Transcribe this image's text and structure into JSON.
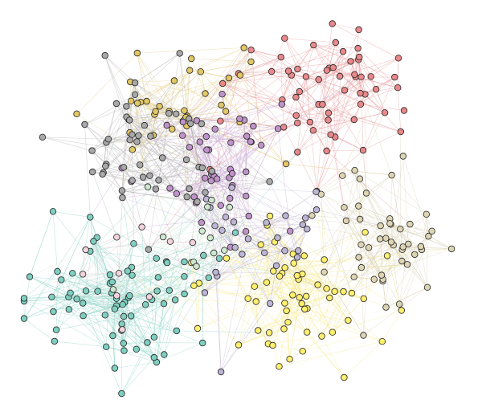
{
  "graph": {
    "type": "network",
    "communities": [
      {
        "id": "red",
        "color": "#e8888a",
        "edge_color": "#e79a9c"
      },
      {
        "id": "olive",
        "color": "#e2c766",
        "edge_color": "#e6d08a"
      },
      {
        "id": "purple",
        "color": "#bf93c9",
        "edge_color": "#c9a6d3"
      },
      {
        "id": "gray",
        "color": "#a8a8a8",
        "edge_color": "#b4b4b4"
      },
      {
        "id": "teal",
        "color": "#7fcfc1",
        "edge_color": "#8fd6c9"
      },
      {
        "id": "yellow",
        "color": "#ffef6e",
        "edge_color": "#f5ea8c"
      },
      {
        "id": "beige",
        "color": "#ddd4b4",
        "edge_color": "#d9d2b6"
      },
      {
        "id": "lilac",
        "color": "#bdb5d4",
        "edge_color": "#c4bcd8"
      },
      {
        "id": "pink",
        "color": "#f2d3dc",
        "edge_color": "#efd9df"
      },
      {
        "id": "mint",
        "color": "#cfe8cf",
        "edge_color": "#d3e7d3"
      }
    ],
    "node_counts": {
      "red": 60,
      "olive": 34,
      "purple": 45,
      "gray": 50,
      "teal": 75,
      "yellow": 58,
      "beige": 48,
      "lilac": 28,
      "pink": 10,
      "mint": 12
    },
    "edge_counts": {
      "intra": 1800,
      "inter": 480
    },
    "background": "#ffffff"
  }
}
